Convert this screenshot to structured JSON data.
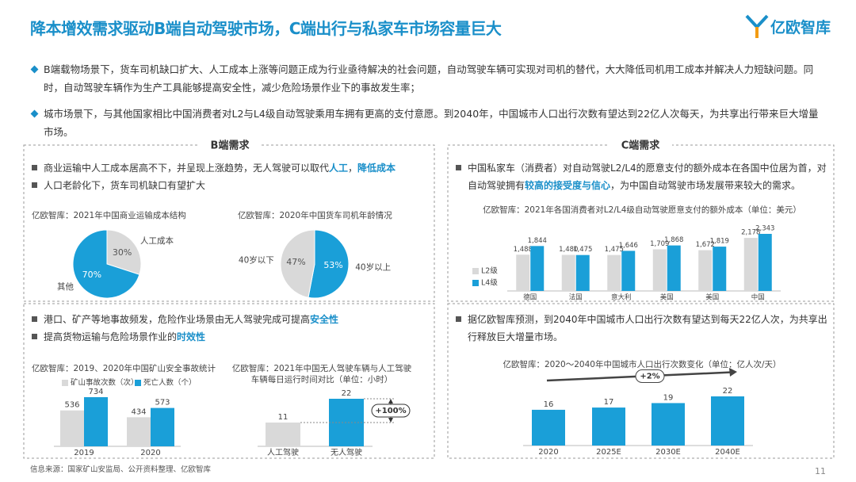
{
  "header": {
    "title": "降本增效需求驱动B端自动驾驶市场，C端出行与私家车市场容量巨大",
    "logo": "亿欧智库"
  },
  "intro": [
    "B端载物场景下，货车司机缺口扩大、人工成本上涨等问题正成为行业亟待解决的社会问题，自动驾驶车辆可实现对司机的替代，大大降低司机用工成本并解决人力短缺问题。同时，自动驾驶车辆作为生产工具能够提高安全性，减少危险场景作业下的事故发生率；",
    "城市场景下，与其他国家相比中国消费者对L2与L4级自动驾驶乘用车拥有更高的支付意愿。到2040年，中国城市人口出行次数有望达到22亿人次每天，为共享出行带来巨大增量市场。"
  ],
  "panels": [
    {
      "title": "B端需求",
      "bullets_top": [
        [
          {
            "text": "商业运输中人工成本居高不下，并呈现上涨趋势，无人驾驶可以取代"
          },
          {
            "text": "人工",
            "highlight": true
          },
          {
            "text": "，"
          },
          {
            "text": "降低成本",
            "highlight": true
          }
        ],
        [
          {
            "text": "人口老龄化下，货车司机缺口有望扩大"
          }
        ]
      ],
      "bullets_bottom": [
        [
          {
            "text": "港口、矿产等地事故频发，危险作业场景由无人驾驶完成可提高"
          },
          {
            "text": "安全性",
            "highlight": true
          }
        ],
        [
          {
            "text": "提高货物运输与危险场景作业的"
          },
          {
            "text": "时效性",
            "highlight": true
          }
        ]
      ]
    },
    {
      "title": "C端需求",
      "bullets_top": [
        [
          {
            "text": "中国私家车（消费者）对自动驾驶L2/L4的愿意支付的额外成本在各国中位居为首，对自动驾驶拥有"
          },
          {
            "text": "较高的接受度与信心",
            "highlight": true
          },
          {
            "text": "，为中国自动驾驶市场发展带来较大的需求。"
          }
        ]
      ],
      "bullets_bottom": [
        [
          {
            "text": "据亿欧智库预测，到2040年中国城市人口出行次数有望达到每天22亿人次，为共享出行释放巨大增量市场。"
          }
        ]
      ]
    }
  ],
  "chart_data": [
    {
      "type": "pie",
      "title": "亿欧智库：2021年中国商业运输成本结构",
      "categories": [
        "人工成本",
        "其他"
      ],
      "values": [
        30,
        70
      ],
      "value_labels": [
        "30%",
        "70%"
      ],
      "colors": [
        "#d9d9d9",
        "#1a9fd8"
      ]
    },
    {
      "type": "pie",
      "title": "亿欧智库：2020年中国货车司机年龄情况",
      "categories": [
        "40岁以上",
        "40岁以下"
      ],
      "values": [
        53,
        47
      ],
      "value_labels": [
        "53%",
        "47%"
      ],
      "colors": [
        "#1a9fd8",
        "#d9d9d9"
      ]
    },
    {
      "type": "bar",
      "title": "亿欧智库：2021年各国消费者对L2/L4级自动驾驶愿意支付的额外成本（单位：美元）",
      "categories": [
        "德国",
        "法国",
        "意大利",
        "美国",
        "美国",
        "中国"
      ],
      "series": [
        {
          "name": "L2级",
          "color": "#d9d9d9",
          "values": [
            1488,
            1480,
            1475,
            1709,
            1672,
            2178
          ],
          "value_labels": [
            "1,488",
            "1,480",
            "1,475",
            "1,709",
            "1,672",
            "2,178"
          ]
        },
        {
          "name": "L4级",
          "color": "#1a9fd8",
          "values": [
            1844,
            1475,
            1646,
            1868,
            1819,
            2343
          ],
          "value_labels": [
            "1,844",
            "1,475",
            "1,646",
            "1,868",
            "1,819",
            "2,343"
          ]
        }
      ]
    },
    {
      "type": "bar",
      "title": "亿欧智库：2019、2020年中国矿山安全事故统计",
      "categories": [
        "2019",
        "2020"
      ],
      "series": [
        {
          "name": "矿山事故次数（次）",
          "color": "#d9d9d9",
          "values": [
            536,
            434
          ]
        },
        {
          "name": "死亡人数（个）",
          "color": "#1a9fd8",
          "values": [
            734,
            573
          ]
        }
      ]
    },
    {
      "type": "bar",
      "title": "亿欧智库：2021年中国无人驾驶车辆与人工驾驶车辆每日运行时间对比（单位：小时）",
      "categories": [
        "人工驾驶",
        "无人驾驶"
      ],
      "values": [
        11,
        22
      ],
      "colors": [
        "#d9d9d9",
        "#1a9fd8"
      ],
      "annotation": "+100%"
    },
    {
      "type": "bar",
      "title": "亿欧智库：2020～2040年中国城市人口出行次数变化（单位：亿人次/天）",
      "categories": [
        "2020",
        "2025E",
        "2030E",
        "2040E"
      ],
      "values": [
        16,
        17,
        19,
        22
      ],
      "color": "#1a9fd8",
      "annotation": "+2%"
    }
  ],
  "footer": {
    "source": "信息来源：国家矿山安监局、公开资料整理、亿欧智库",
    "page": "11"
  }
}
